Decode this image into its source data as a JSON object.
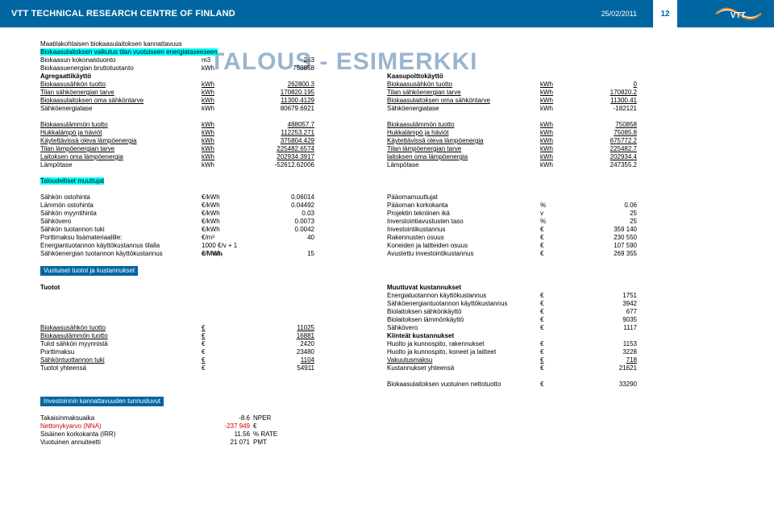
{
  "header": {
    "org": "VTT TECHNICAL RESEARCH CENTRE OF FINLAND",
    "date": "25/02/2011",
    "page": "12",
    "logo_text": "VTT"
  },
  "watermark": "TALOUS - ESIMERKKI",
  "title1": "Maatilakohtaisen biokaasulaitoksen kannattavuus",
  "title2": "Biokaasulaitoksen vaikutus tilan vuotuiseen energiataseeseen",
  "group_a": {
    "left": [
      {
        "l": "Biokaasun kokonaistuonto",
        "u": "m3",
        "v": "263"
      },
      {
        "l": "Biokaasuenergian bruttotuotanto",
        "u": "kWh",
        "v": "750858"
      },
      {
        "l": "Agregaattikäyttö",
        "u": "",
        "v": "",
        "b": true
      },
      {
        "l": "Biokaasusähkön tuotto",
        "u": "kWh",
        "v": "262800.3",
        "ul": true
      },
      {
        "l": "Tilan sähköenergian tarve",
        "u": "kWh",
        "v": "170820.195",
        "ul": true
      },
      {
        "l": "Biokaasulaitoksen oma sähköntarve",
        "u": "kWh",
        "v": "11300.4129",
        "ul": true
      },
      {
        "l": "Sähköenergiatase",
        "u": "kWh",
        "v": "80679.6921"
      }
    ],
    "right": [
      {
        "l": "",
        "u": "",
        "v": ""
      },
      {
        "l": "",
        "u": "",
        "v": ""
      },
      {
        "l": "Kaasupolttokäyttö",
        "u": "",
        "v": "",
        "b": true
      },
      {
        "l": "Biokaasusähkön tuotto",
        "u": "kWh",
        "v": "0",
        "ul": true
      },
      {
        "l": "Tilan sähköenergian tarve",
        "u": "kWh",
        "v": "170820.2",
        "ul": true
      },
      {
        "l": "Biokaasulaitoksen oma sähköntarve",
        "u": "kWh",
        "v": "11300.41",
        "ul": true
      },
      {
        "l": "Sähköenergiatase",
        "u": "kWh",
        "v": "-182121"
      }
    ]
  },
  "group_b": {
    "left": [
      {
        "l": "Biokaasulämmön tuotto",
        "u": "kWh",
        "v": "488057.7",
        "ul": true
      },
      {
        "l": "Hukkalämpö ja häviöt",
        "u": "kWh",
        "v": "112253.271",
        "ul": true
      },
      {
        "l": "Käytettävissä oleva lämpöenergia",
        "u": "kWh",
        "v": "375804.429",
        "ul": true
      },
      {
        "l": "Tilan lämpöenergian tarve",
        "u": "kWh",
        "v": "225482.6574",
        "ul": true
      },
      {
        "l": "Laitoksen oma lämpöenergia",
        "u": "kWh",
        "v": "202934.3917",
        "ul": true
      },
      {
        "l": "Lämpötase",
        "u": "kWh",
        "v": "-52612.62006"
      }
    ],
    "right": [
      {
        "l": "Biokaasulämmön tuotto",
        "u": "kWh",
        "v": "750858",
        "ul": true
      },
      {
        "l": "Hukkalämpö ja häviöt",
        "u": "kWh",
        "v": "75085.8",
        "ul": true
      },
      {
        "l": "Käytettävissä oleva lämpöenergia",
        "u": "kWh",
        "v": "675772.2",
        "ul": true
      },
      {
        "l": "Tilan lämpöenergian tarve",
        "u": "kWh",
        "v": "225482.7",
        "ul": true
      },
      {
        "l": "laitoksen oma lämpöenergia",
        "u": "kWh",
        "v": "202934.4",
        "ul": true
      },
      {
        "l": "Lämpötase",
        "u": "kWh",
        "v": "247355.2"
      }
    ]
  },
  "taloudelliset_title": "Taloudelliset muuttujat",
  "group_c": {
    "left": [
      {
        "l": "Sähkön ostohinta",
        "u": "€/kWh",
        "v": "0.06014"
      },
      {
        "l": "Lämmön ostohinta",
        "u": "€/kWh",
        "v": "0.04492"
      },
      {
        "l": "Sähkön myyntihinta",
        "u": "€/kWh",
        "v": "0.03"
      },
      {
        "l": "Sähkövero",
        "u": "€/kWh",
        "v": "0.0073"
      },
      {
        "l": "Sähkön tuotannon tuki",
        "u": "€/kWh",
        "v": "0.0042"
      },
      {
        "l": "Porttimaksu lisämateriaalille:",
        "u": "€/m³",
        "v": "40"
      },
      {
        "l": "Energiantuotannon käyttökustannus tilalla",
        "u": "1000 €/v + 1 e/MWh",
        "v": ""
      },
      {
        "l": "Sähköenergian tuotannon käyttökustannus",
        "u": "€/Mwhₑ",
        "v": "15"
      }
    ],
    "right": [
      {
        "l": "Pääomamuuttujat",
        "u": "",
        "v": ""
      },
      {
        "l": "Pääoman korkokanta",
        "u": "%",
        "v": "0.06"
      },
      {
        "l": "Projektin tekniinen ikä",
        "u": "v",
        "v": "25"
      },
      {
        "l": "Inverstointiavustusten taso",
        "u": "%",
        "v": "25"
      },
      {
        "l": "Investointikustannus",
        "u": "€",
        "v": "359 140"
      },
      {
        "l": "Rakennusten osuus",
        "u": "€",
        "v": "230 550"
      },
      {
        "l": "Koneiden ja laitteiden osuus",
        "u": "€",
        "v": "107 590"
      },
      {
        "l": "Avustettu investointikustannus",
        "u": "€",
        "v": "269 355"
      }
    ]
  },
  "bar_vuotuiset": "Vuotuiset tuotot ja kustannukset",
  "group_d": {
    "left_title": "Tuotot",
    "right_title": "Muuttuvat kustannukset",
    "right_pre": [
      {
        "l": "Energiatuotannon käyttökustannus",
        "u": "€",
        "v": "1751"
      },
      {
        "l": "Sähköenergiantuotannon käyttökustannus",
        "u": "€",
        "v": "3942"
      },
      {
        "l": "Biolaitoksen sähkönkäyttö",
        "u": "€",
        "v": "677"
      },
      {
        "l": "Biolaitoksen lämmönkäyttö",
        "u": "€",
        "v": "9035"
      }
    ],
    "left": [
      {
        "l": "Biokaasusähkön tuotto",
        "u": "€",
        "v": "11025",
        "ul": true
      },
      {
        "l": "Biokaasulämmön tuotto",
        "u": "€",
        "v": "16881",
        "ul": true
      },
      {
        "l": "Tulot sähkön myynnistä",
        "u": "€",
        "v": "2420"
      },
      {
        "l": "Porttimaksu",
        "u": "€",
        "v": "23480"
      },
      {
        "l": "Sähköntuottannon tuki",
        "u": "€",
        "v": "1104",
        "ul": true
      },
      {
        "l": "Tuotot yhteensä",
        "u": "€",
        "v": "54911"
      }
    ],
    "right": [
      {
        "l": "Sähkövero",
        "u": "€",
        "v": "1117"
      },
      {
        "l": "Kiinteät kustannukset",
        "u": "",
        "v": "",
        "b": true
      },
      {
        "l": "Huolto ja kunnospito, rakennukset",
        "u": "€",
        "v": "1153"
      },
      {
        "l": "Huolto ja kunnospito, koneet ja laitteet",
        "u": "€",
        "v": "3228"
      },
      {
        "l": "Vakuutusmaksu",
        "u": "€",
        "v": "718",
        "ul": true
      },
      {
        "l": "Kustannukset yhteensä",
        "u": "€",
        "v": "21621"
      }
    ],
    "netto": {
      "l": "Biokaasulaitoksen vuotuinen nettotuotto",
      "u": "€",
      "v": "33290"
    }
  },
  "bar_inv": "Investoinnin kannattavuuden tunnusluvut",
  "group_e": [
    {
      "l": "Takaisinmaksuaika",
      "v": "-8.6",
      "n": "NPER"
    },
    {
      "l": "Nettonykyarvo (NNA)",
      "v": "-237 949",
      "n": "€",
      "red": true
    },
    {
      "l": "Sisäinen korkokanta (IRR)",
      "v": "11.56",
      "n": "% RATE"
    },
    {
      "l": "Vuotuinen annuiteetti",
      "v": "21 071",
      "n": "PMT"
    }
  ],
  "colors": {
    "header_bg": "#0066a1",
    "highlight": "#00ffff",
    "red": "#cc0000"
  }
}
